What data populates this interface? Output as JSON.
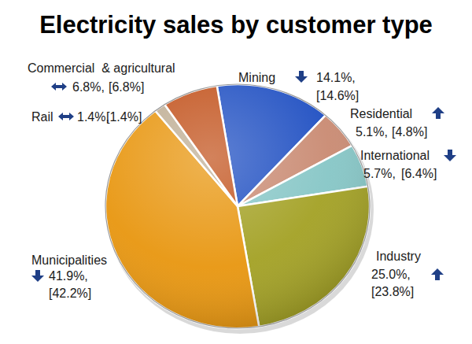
{
  "chart_data": {
    "type": "pie",
    "title": "Electricity sales by customer type",
    "categories": [
      "Mining",
      "Residential",
      "International",
      "Industry",
      "Municipalities",
      "Rail",
      "Commercial  & agricultural"
    ],
    "values": [
      14.1,
      5.1,
      5.7,
      25.0,
      41.9,
      1.4,
      6.8
    ],
    "value_labels": [
      "14.1%,",
      "5.1%,",
      "5.7%,",
      "25.0%,",
      "41.9%,",
      "1.4%,",
      "6.8%,"
    ],
    "previous_values": [
      14.6,
      4.8,
      6.4,
      23.8,
      42.2,
      1.4,
      6.8
    ],
    "previous_value_labels": [
      "[14.6%]",
      "[4.8%]",
      "[6.4%]",
      "[23.8%]",
      "[42.2%]",
      "[1.4%]",
      "[6.8%]"
    ],
    "colors": [
      "#1f4fc2",
      "#c98a72",
      "#86c6c6",
      "#a3a124",
      "#e8960f",
      "#bfae94",
      "#c2521c"
    ],
    "data_labels": true
  }
}
